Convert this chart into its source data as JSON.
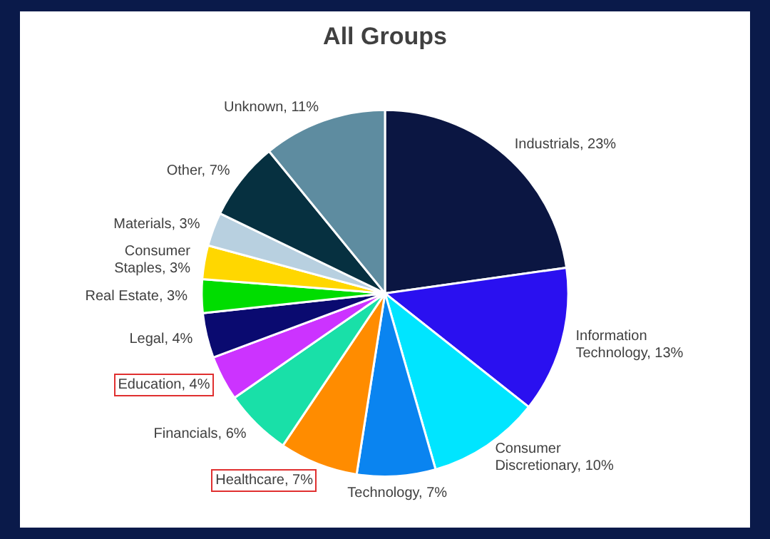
{
  "chart_data": {
    "type": "pie",
    "title": "All Groups",
    "categories": [
      "Industrials",
      "Information Technology",
      "Consumer Discretionary",
      "Technology",
      "Healthcare",
      "Financials",
      "Education",
      "Legal",
      "Real Estate",
      "Consumer Staples",
      "Materials",
      "Other",
      "Unknown"
    ],
    "values": [
      23,
      13,
      10,
      7,
      7,
      6,
      4,
      4,
      3,
      3,
      3,
      7,
      11
    ],
    "value_labels": [
      "23%",
      "13%",
      "10%",
      "7%",
      "7%",
      "6%",
      "4%",
      "4%",
      "3%",
      "3%",
      "3%",
      "7%",
      "11%"
    ],
    "colors": [
      "#0b1642",
      "#2a10f0",
      "#00e5ff",
      "#0a84f0",
      "#ff8c00",
      "#19e0a8",
      "#cc33ff",
      "#0a0a70",
      "#00dd00",
      "#ffd700",
      "#b8d0e0",
      "#063040",
      "#5e8ca0"
    ],
    "legend": false
  }
}
